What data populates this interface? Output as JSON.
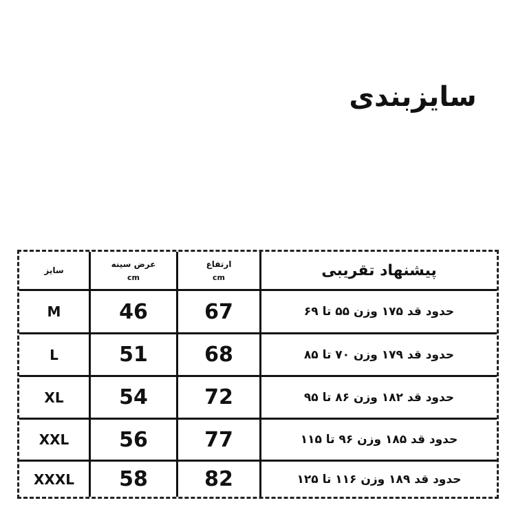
{
  "title": "سایزبندی",
  "table": {
    "headers": {
      "size": "سایز",
      "chest_width": "عرض سینه",
      "chest_width_unit": "cm",
      "height": "ارتفاع",
      "height_unit": "cm",
      "suggestion": "پیشنهاد تقریبی"
    },
    "rows": [
      {
        "size": "M",
        "chest_width": "46",
        "height": "67",
        "suggestion": "حدود قد ۱۷۵ وزن ۵۵ تا ۶۹"
      },
      {
        "size": "L",
        "chest_width": "51",
        "height": "68",
        "suggestion": "حدود قد ۱۷۹ وزن ۷۰ تا ۸۵"
      },
      {
        "size": "XL",
        "chest_width": "54",
        "height": "72",
        "suggestion": "حدود قد ۱۸۲ وزن ۸۶ تا ۹۵"
      },
      {
        "size": "XXL",
        "chest_width": "56",
        "height": "77",
        "suggestion": "حدود قد ۱۸۵ وزن ۹۶ تا ۱۱۵"
      },
      {
        "size": "XXXL",
        "chest_width": "58",
        "height": "82",
        "suggestion": "حدود قد ۱۸۹ وزن ۱۱۶ تا ۱۲۵"
      }
    ]
  }
}
